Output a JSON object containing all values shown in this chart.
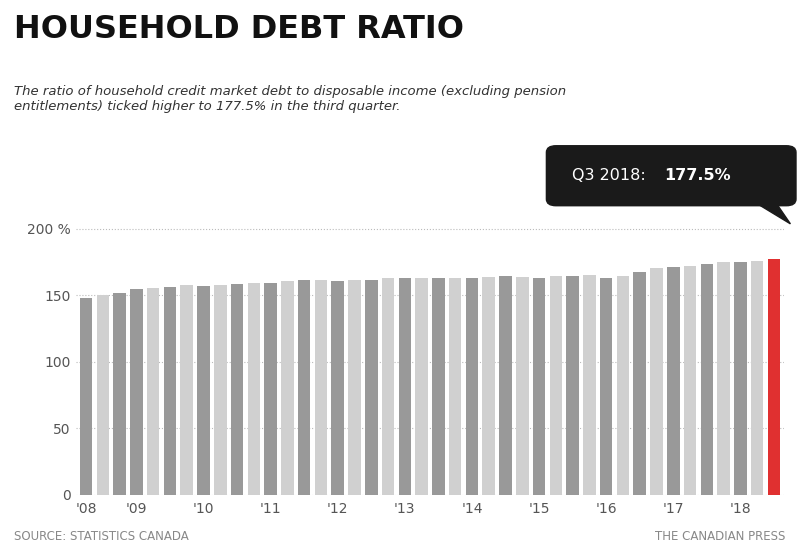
{
  "title": "HOUSEHOLD DEBT RATIO",
  "subtitle": "The ratio of household credit market debt to disposable income (excluding pension\nentitlements) ticked higher to 177.5% in the third quarter.",
  "source_left": "SOURCE: STATISTICS CANADA",
  "source_right": "THE CANADIAN PRESS",
  "ylim": [
    0,
    215
  ],
  "values": [
    148.0,
    150.5,
    152.0,
    154.5,
    155.5,
    156.5,
    157.5,
    157.0,
    157.5,
    158.5,
    159.0,
    159.5,
    161.0,
    161.5,
    161.5,
    160.5,
    161.5,
    162.0,
    163.5,
    163.5,
    163.5,
    163.0,
    163.5,
    163.5,
    164.0,
    164.5,
    164.0,
    163.5,
    164.5,
    165.0,
    165.5,
    163.5,
    165.0,
    167.5,
    170.5,
    171.5,
    172.5,
    173.5,
    175.0,
    175.0,
    176.0,
    177.5
  ],
  "quarters_per_year": [
    3,
    4,
    4,
    4,
    4,
    4,
    4,
    4,
    4,
    4,
    3
  ],
  "year_start_indices": [
    0,
    3,
    7,
    11,
    15,
    19,
    23,
    27,
    31,
    35,
    39
  ],
  "year_labels": [
    "'08",
    "'09",
    "'10",
    "'11",
    "'12",
    "'13",
    "'14",
    "'15",
    "'16",
    "'17",
    "'18"
  ],
  "dark_gray": "#999999",
  "light_gray": "#d0d0d0",
  "red_color": "#e03030",
  "bg_color": "#ffffff",
  "title_color": "#111111",
  "subtitle_color": "#333333",
  "source_color": "#888888",
  "annotation_bg": "#1a1a1a",
  "grid_color": "#bbbbbb",
  "ann_label": "Q3 2018: ",
  "ann_value": "177.5%"
}
